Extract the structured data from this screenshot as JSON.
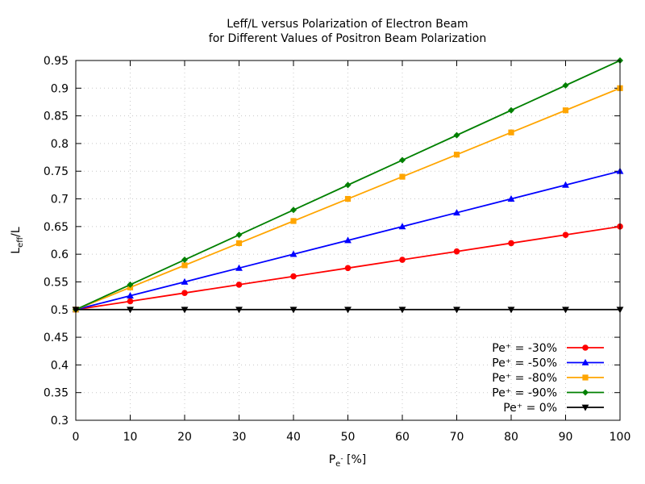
{
  "chart_data": {
    "type": "line",
    "title_line1": "Leff/L versus Polarization of Electron Beam",
    "title_line2": "for Different Values of Positron Beam Polarization",
    "xlabel": {
      "main": "P",
      "sub": "e",
      "sup": "-",
      "suffix": " [%]"
    },
    "ylabel": {
      "main": "L",
      "sub": "eff",
      "suffix": "/L"
    },
    "xlim": [
      0,
      100
    ],
    "ylim": [
      0.3,
      0.95
    ],
    "xticks": [
      0,
      10,
      20,
      30,
      40,
      50,
      60,
      70,
      80,
      90,
      100
    ],
    "xtick_labels": [
      "0",
      "10",
      "20",
      "30",
      "40",
      "50",
      "60",
      "70",
      "80",
      "90",
      "100"
    ],
    "yticks": [
      0.3,
      0.35,
      0.4,
      0.45,
      0.5,
      0.55,
      0.6,
      0.65,
      0.7,
      0.75,
      0.8,
      0.85,
      0.9,
      0.95
    ],
    "ytick_labels": [
      "0.3",
      "0.35",
      "0.4",
      "0.45",
      "0.5",
      "0.55",
      "0.6",
      "0.65",
      "0.7",
      "0.75",
      "0.8",
      "0.85",
      "0.9",
      "0.95"
    ],
    "grid": true,
    "legend_position": "bottom-right",
    "x": [
      0,
      10,
      20,
      30,
      40,
      50,
      60,
      70,
      80,
      90,
      100
    ],
    "series": [
      {
        "name": "Pe⁺ = -30%",
        "color": "#ff0000",
        "marker": "circle",
        "values": [
          0.5,
          0.515,
          0.53,
          0.545,
          0.56,
          0.575,
          0.59,
          0.605,
          0.62,
          0.635,
          0.65
        ]
      },
      {
        "name": "Pe⁺ = -50%",
        "color": "#0000ff",
        "marker": "triangle-up",
        "values": [
          0.5,
          0.525,
          0.55,
          0.575,
          0.6,
          0.625,
          0.65,
          0.675,
          0.7,
          0.725,
          0.75
        ]
      },
      {
        "name": "Pe⁺ = -80%",
        "color": "#ffa500",
        "marker": "square",
        "values": [
          0.5,
          0.54,
          0.58,
          0.62,
          0.66,
          0.7,
          0.74,
          0.78,
          0.82,
          0.86,
          0.9
        ]
      },
      {
        "name": "Pe⁺ = -90%",
        "color": "#008000",
        "marker": "diamond",
        "values": [
          0.5,
          0.545,
          0.59,
          0.635,
          0.68,
          0.725,
          0.77,
          0.815,
          0.86,
          0.905,
          0.95
        ]
      },
      {
        "name": "Pe⁺ = 0%",
        "color": "#000000",
        "marker": "triangle-down",
        "values": [
          0.5,
          0.5,
          0.5,
          0.5,
          0.5,
          0.5,
          0.5,
          0.5,
          0.5,
          0.5,
          0.5
        ]
      }
    ]
  }
}
